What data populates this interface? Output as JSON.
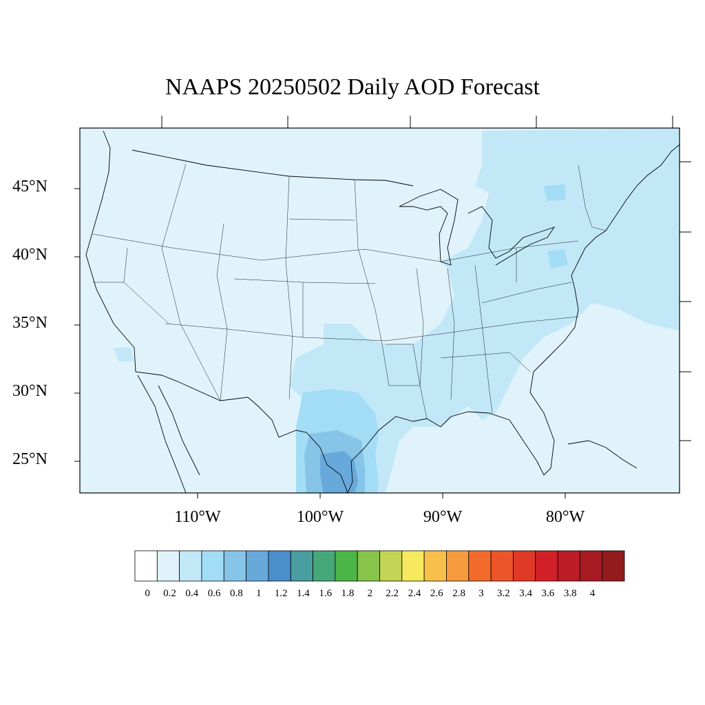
{
  "title": "NAAPS 20250502 Daily AOD Forecast",
  "map": {
    "region": "Contiguous United States",
    "lat_labels": [
      "45°N",
      "40°N",
      "35°N",
      "30°N",
      "25°N"
    ],
    "lon_labels": [
      "110°W",
      "100°W",
      "90°W",
      "80°W"
    ],
    "field": "Aerosol Optical Depth"
  },
  "colorbar": {
    "labels": [
      "0",
      "0.2",
      "0.4",
      "0.6",
      "0.8",
      "1",
      "1.2",
      "1.4",
      "1.6",
      "1.8",
      "2",
      "2.2",
      "2.4",
      "2.6",
      "2.8",
      "3",
      "3.2",
      "3.4",
      "3.6",
      "3.8",
      "4"
    ],
    "colors": [
      "#ffffff",
      "#e0f3fb",
      "#c2e8f8",
      "#a3dcf5",
      "#86c4e8",
      "#68a9dc",
      "#4a8ecc",
      "#4a9da0",
      "#46a878",
      "#4cb548",
      "#88c44c",
      "#c4d455",
      "#f6e95d",
      "#f7c04a",
      "#f59b3d",
      "#f36b2c",
      "#ec5429",
      "#e03a27",
      "#d22028",
      "#bb1c25",
      "#a81b22",
      "#931b1d"
    ]
  },
  "aod_regions": [
    {
      "name": "background",
      "level": "0.2-0.4"
    },
    {
      "name": "south-texas-plume",
      "level": "1-1.2"
    },
    {
      "name": "eastern-haze",
      "level": "0.4-0.6"
    }
  ]
}
